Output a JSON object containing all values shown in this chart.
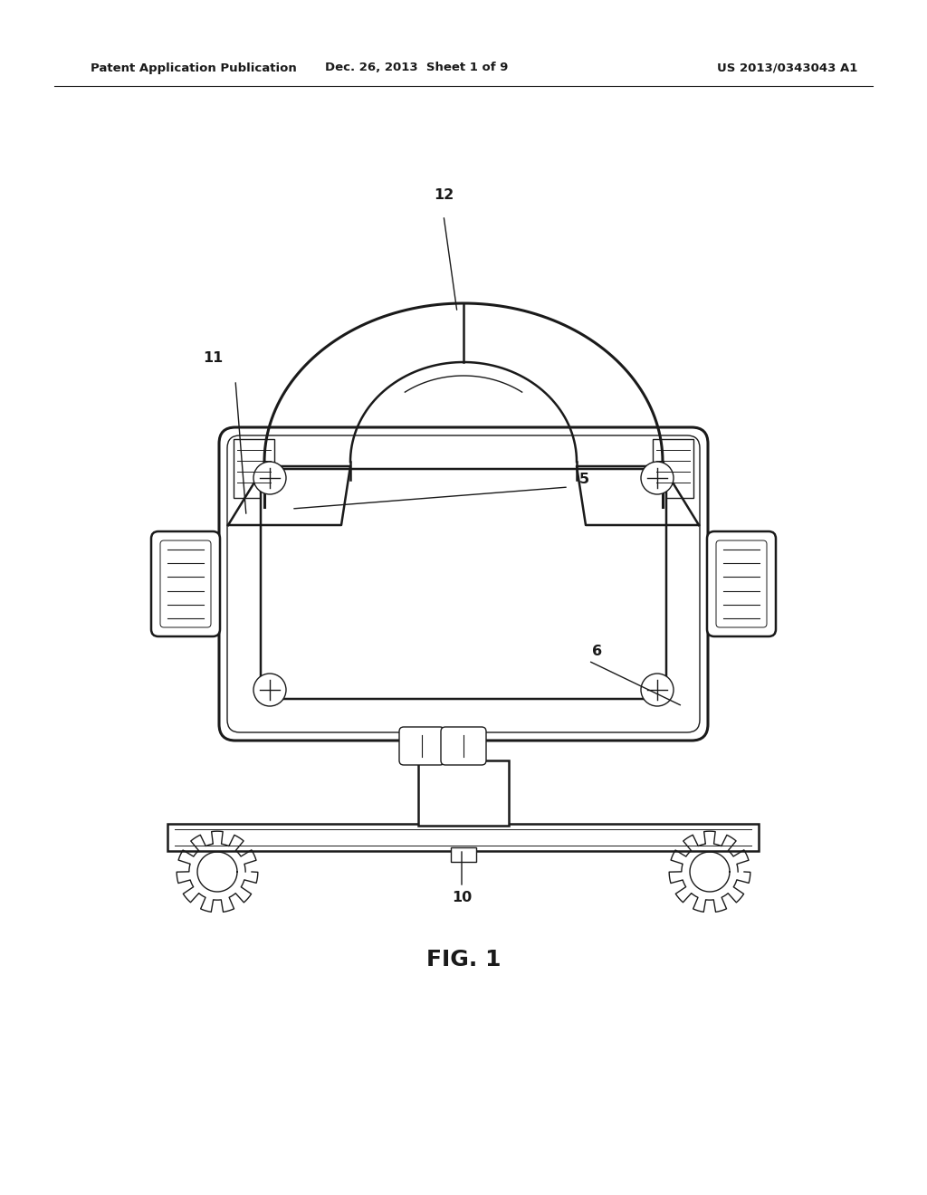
{
  "bg_color": "#ffffff",
  "line_color": "#1a1a1a",
  "header_left": "Patent Application Publication",
  "header_mid": "Dec. 26, 2013  Sheet 1 of 9",
  "header_right": "US 2013/0343043 A1",
  "fig_label": "FIG. 1"
}
